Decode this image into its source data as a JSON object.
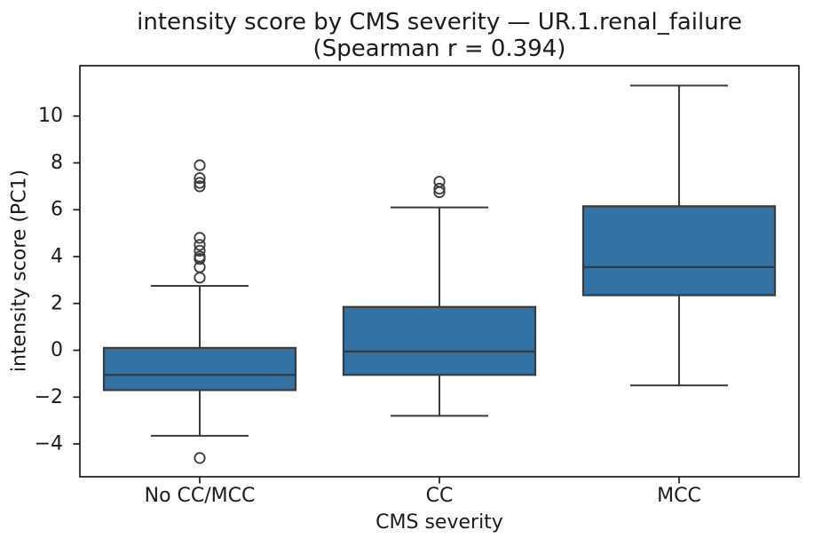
{
  "chart_data": {
    "type": "box",
    "title": "intensity score by CMS severity — UR.1.renal_failure",
    "subtitle": "(Spearman r = 0.394)",
    "xlabel": "CMS severity",
    "ylabel": "intensity score (PC1)",
    "categories": [
      "No CC/MCC",
      "CC",
      "MCC"
    ],
    "ylim": [
      -5.4,
      12.15
    ],
    "yticks": [
      -4,
      -2,
      0,
      2,
      4,
      6,
      8,
      10
    ],
    "grid": false,
    "legend": false,
    "series": [
      {
        "category": "No CC/MCC",
        "whisker_low": -3.65,
        "q1": -1.7,
        "median": -1.05,
        "q3": 0.1,
        "whisker_high": 2.75,
        "outliers": [
          7.9,
          7.35,
          7.15,
          7.0,
          4.8,
          4.5,
          4.25,
          4.0,
          3.9,
          3.55,
          3.1,
          -4.6
        ]
      },
      {
        "category": "CC",
        "whisker_low": -2.8,
        "q1": -1.05,
        "median": -0.05,
        "q3": 1.85,
        "whisker_high": 6.1,
        "outliers": [
          7.2,
          6.9,
          6.75
        ]
      },
      {
        "category": "MCC",
        "whisker_low": -1.5,
        "q1": 2.35,
        "median": 3.55,
        "q3": 6.15,
        "whisker_high": 11.3,
        "outliers": []
      }
    ],
    "colors": {
      "box_fill": "#3272A5",
      "box_edge": "#3A3A3A",
      "whisker": "#3A3A3A",
      "median": "#3A3A3A",
      "flier_edge": "#3A3A3A",
      "spine": "#1A1A1A",
      "text": "#1A1A1A",
      "background": "#FFFFFF"
    }
  }
}
